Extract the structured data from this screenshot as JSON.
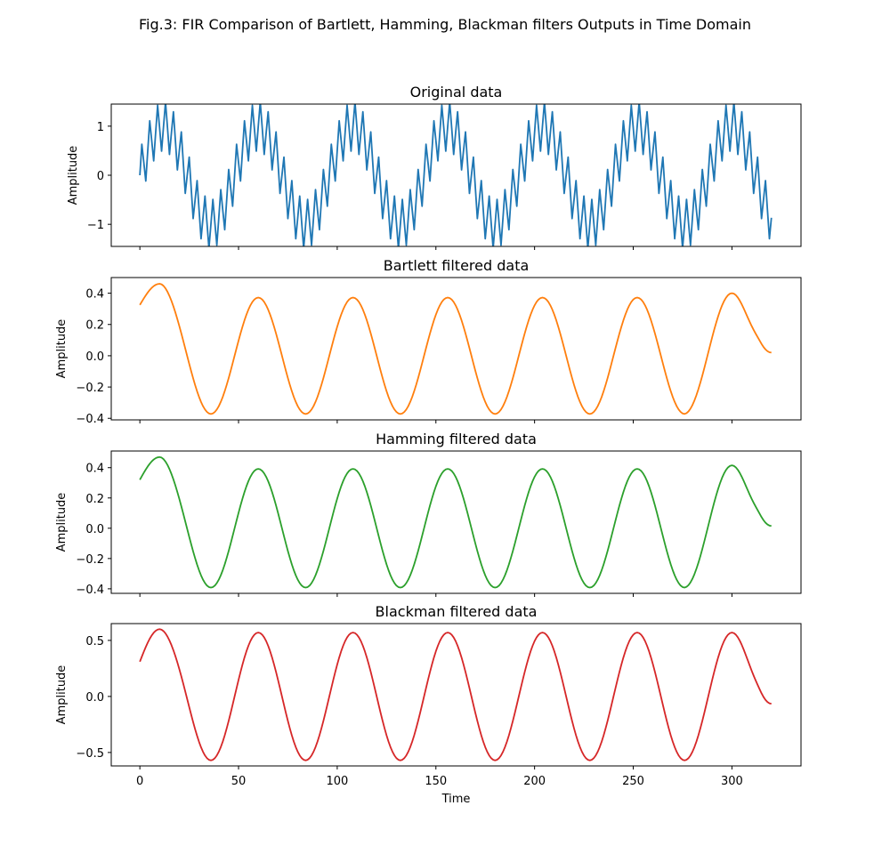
{
  "suptitle": "Fig.3: FIR Comparison of Bartlett, Hamming, Blackman filters Outputs in Time Domain",
  "chart_data": [
    {
      "type": "line",
      "title": "Original data",
      "ylabel": "Amplitude",
      "xlabel": "",
      "xlim": [
        -14.5,
        335
      ],
      "ylim": [
        -1.45,
        1.45
      ],
      "xticks": [
        0,
        50,
        100,
        150,
        200,
        250,
        300
      ],
      "yticks": [
        -1,
        0,
        1
      ],
      "ytick_labels": [
        "−1",
        "0",
        "1"
      ],
      "show_xtick_labels": false,
      "grid": false,
      "series": [
        {
          "color": "#1f77b4",
          "signal": {
            "n": 321,
            "components": [
              {
                "amp": 1.0,
                "period": 48,
                "phase": 0
              },
              {
                "amp": 0.5,
                "period": 4,
                "phase": 0
              }
            ]
          }
        }
      ]
    },
    {
      "type": "line",
      "title": "Bartlett filtered data",
      "ylabel": "Amplitude",
      "xlabel": "",
      "xlim": [
        -14.5,
        335
      ],
      "ylim": [
        -0.41,
        0.5
      ],
      "xticks": [
        0,
        50,
        100,
        150,
        200,
        250,
        300
      ],
      "yticks": [
        -0.4,
        -0.2,
        0.0,
        0.2,
        0.4
      ],
      "ytick_labels": [
        "−0.4",
        "−0.2",
        "0.0",
        "0.2",
        "0.4"
      ],
      "show_xtick_labels": false,
      "grid": false,
      "series": [
        {
          "color": "#ff7f0e",
          "signal": {
            "n": 321,
            "amp": 0.372,
            "period": 48,
            "peak_first": 60,
            "edges": [
              {
                "x": 0,
                "y": 0.325
              },
              {
                "x": 10,
                "y": 0.46
              },
              {
                "x": 36,
                "y": -0.372
              },
              {
                "x": 300,
                "y": 0.4
              },
              {
                "x": 320,
                "y": 0.02
              }
            ]
          }
        }
      ]
    },
    {
      "type": "line",
      "title": "Hamming filtered data",
      "ylabel": "Amplitude",
      "xlabel": "",
      "xlim": [
        -14.5,
        335
      ],
      "ylim": [
        -0.43,
        0.51
      ],
      "xticks": [
        0,
        50,
        100,
        150,
        200,
        250,
        300
      ],
      "yticks": [
        -0.4,
        -0.2,
        0.0,
        0.2,
        0.4
      ],
      "ytick_labels": [
        "−0.4",
        "−0.2",
        "0.0",
        "0.2",
        "0.4"
      ],
      "show_xtick_labels": false,
      "grid": false,
      "series": [
        {
          "color": "#2ca02c",
          "signal": {
            "n": 321,
            "amp": 0.392,
            "period": 48,
            "peak_first": 60,
            "edges": [
              {
                "x": 0,
                "y": 0.32
              },
              {
                "x": 10,
                "y": 0.47
              },
              {
                "x": 36,
                "y": -0.392
              },
              {
                "x": 300,
                "y": 0.415
              },
              {
                "x": 320,
                "y": 0.015
              }
            ]
          }
        }
      ]
    },
    {
      "type": "line",
      "title": "Blackman filtered data",
      "ylabel": "Amplitude",
      "xlabel": "Time",
      "xlim": [
        -14.5,
        335
      ],
      "ylim": [
        -0.62,
        0.65
      ],
      "xticks": [
        0,
        50,
        100,
        150,
        200,
        250,
        300
      ],
      "xtick_labels": [
        "0",
        "50",
        "100",
        "150",
        "200",
        "250",
        "300"
      ],
      "yticks": [
        -0.5,
        0.0,
        0.5
      ],
      "ytick_labels": [
        "−0.5",
        "0.0",
        "0.5"
      ],
      "show_xtick_labels": true,
      "grid": false,
      "series": [
        {
          "color": "#d62728",
          "signal": {
            "n": 321,
            "amp": 0.57,
            "period": 48,
            "peak_first": 60,
            "edges": [
              {
                "x": 0,
                "y": 0.31
              },
              {
                "x": 10,
                "y": 0.6
              },
              {
                "x": 36,
                "y": -0.57
              },
              {
                "x": 300,
                "y": 0.57
              },
              {
                "x": 320,
                "y": -0.065
              }
            ]
          }
        }
      ]
    }
  ]
}
